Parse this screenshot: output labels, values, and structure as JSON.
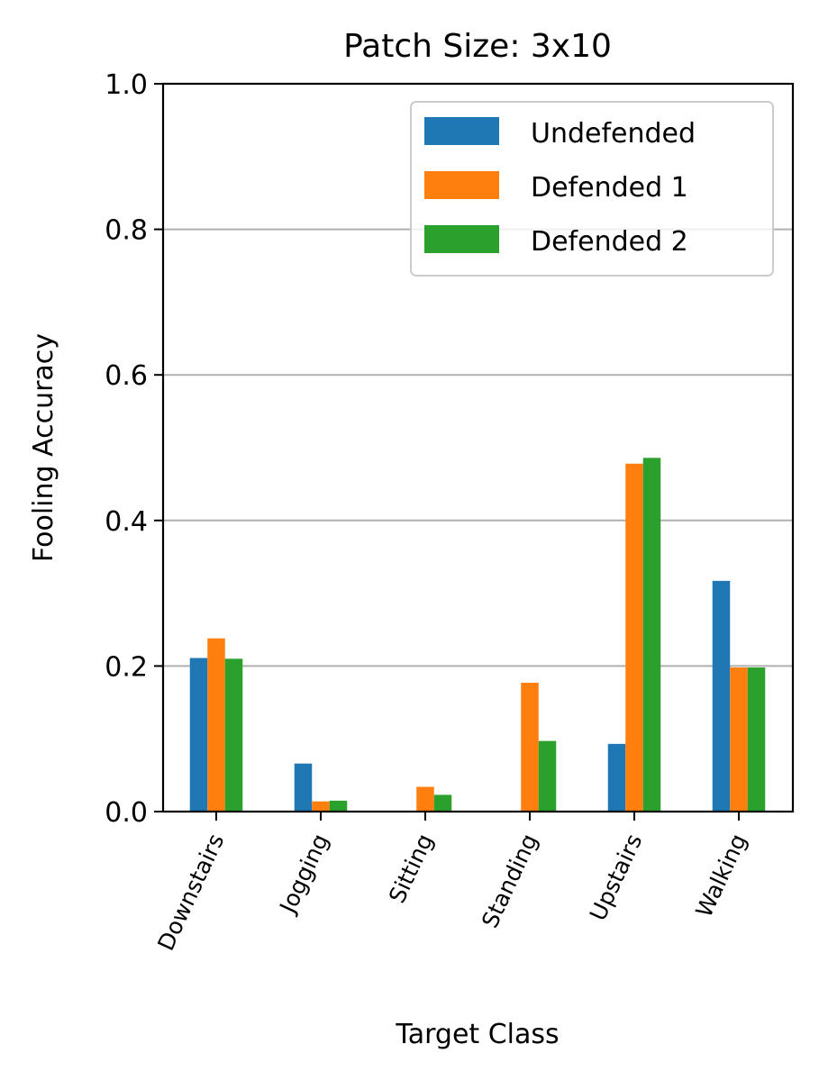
{
  "chart_data": {
    "type": "bar",
    "title": "Patch Size: 3x10",
    "xlabel": "Target Class",
    "ylabel": "Fooling Accuracy",
    "categories": [
      "Downstairs",
      "Jogging",
      "Sitting",
      "Standing",
      "Upstairs",
      "Walking"
    ],
    "series": [
      {
        "name": "Undefended",
        "color": "#1f77b4",
        "values": [
          0.211,
          0.066,
          0.0,
          0.0,
          0.093,
          0.317
        ]
      },
      {
        "name": "Defended 1",
        "color": "#ff7f0e",
        "values": [
          0.238,
          0.014,
          0.034,
          0.177,
          0.478,
          0.198
        ]
      },
      {
        "name": "Defended 2",
        "color": "#2ca02c",
        "values": [
          0.21,
          0.015,
          0.023,
          0.097,
          0.486,
          0.198
        ]
      }
    ],
    "ylim": [
      0,
      1.0
    ],
    "yticks": [
      "0.0",
      "0.2",
      "0.4",
      "0.6",
      "0.8",
      "1.0"
    ],
    "ytick_values": [
      0,
      0.2,
      0.4,
      0.6,
      0.8,
      1.0
    ],
    "grid": "y",
    "legend_position": "top-right"
  }
}
